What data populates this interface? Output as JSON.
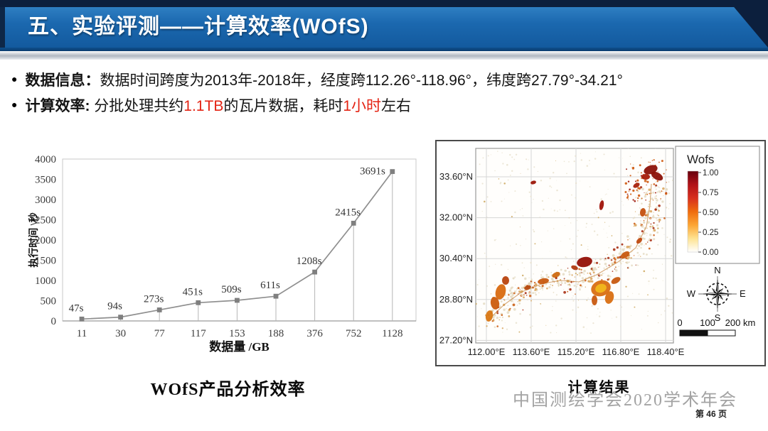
{
  "slide": {
    "title": "五、实验评测——计算效率(WOfS)",
    "watermark": "中国测绘学会2020学术年会",
    "page_label": "第 46 页",
    "colors": {
      "header_blue": "#1b68af",
      "header_navy": "#0c1f3d",
      "accent_red": "#e42313",
      "chart_line_gray": "#8f8f8f"
    }
  },
  "bullets": [
    {
      "label": "数据信息：",
      "segments": [
        {
          "text": "数据时间跨度为2013年-2018年，经度跨112.26°-118.96°，纬度跨27.79°-34.21°",
          "highlight": false
        }
      ]
    },
    {
      "label": "计算效率: ",
      "segments": [
        {
          "text": "分批处理共约",
          "highlight": false
        },
        {
          "text": "1.1TB",
          "highlight": true
        },
        {
          "text": "的瓦片数据，耗时",
          "highlight": false
        },
        {
          "text": "1小时",
          "highlight": true
        },
        {
          "text": "左右",
          "highlight": false
        }
      ]
    }
  ],
  "chart_data": {
    "type": "line",
    "caption": "WOfS产品分析效率",
    "categories": [
      "11",
      "30",
      "77",
      "117",
      "153",
      "188",
      "376",
      "752",
      "1128"
    ],
    "values": [
      47,
      94,
      273,
      451,
      509,
      611,
      1208,
      2415,
      3691
    ],
    "point_labels": [
      "47s",
      "94s",
      "273s",
      "451s",
      "509s",
      "611s",
      "1208s",
      "2415s",
      "3691s"
    ],
    "xlabel": "数据量 /GB",
    "ylabel": "执行时间 \\秒",
    "ylim": [
      0,
      4000
    ],
    "ytick_step": 500,
    "grid": false,
    "legend_position": "none",
    "line_color": "#8f8f8f",
    "marker_color": "#7f7f7f",
    "drop_lines": true
  },
  "map": {
    "caption": "计算结果",
    "legend_title": "Wofs",
    "legend_ticks": [
      "1.00",
      "0.75",
      "0.50",
      "0.25",
      "0.00"
    ],
    "colorbar_colors": [
      "#67000d",
      "#b11218",
      "#d7301f",
      "#ef6c0e",
      "#fca635",
      "#fee391",
      "#ffffff"
    ],
    "x_ticks": [
      "112.00°E",
      "113.60°E",
      "115.20°E",
      "116.80°E",
      "118.40°E"
    ],
    "y_ticks": [
      "33.60°N",
      "32.00°N",
      "30.40°N",
      "28.80°N",
      "27.20°N"
    ],
    "compass": {
      "n": "N",
      "e": "E",
      "s": "S",
      "w": "W"
    },
    "scale_labels": [
      "0",
      "100",
      "200 km"
    ]
  }
}
